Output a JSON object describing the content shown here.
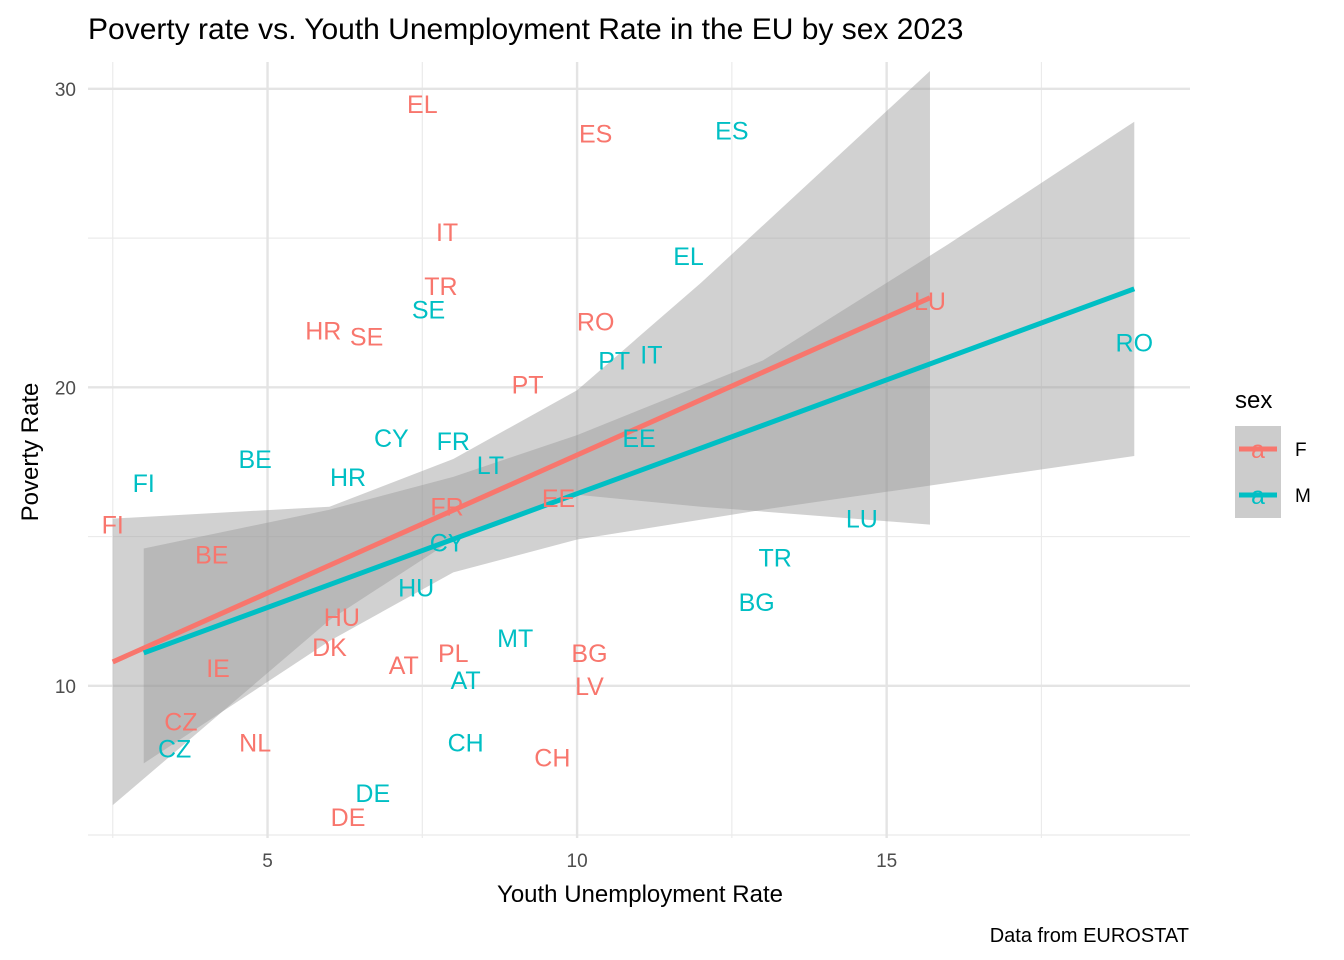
{
  "chart_data": {
    "type": "scatter",
    "title": "Poverty rate vs. Youth Unemployment Rate in the EU by sex 2023",
    "xlabel": "Youth Unemployment Rate",
    "ylabel": "Poverty Rate",
    "caption": "Data from EUROSTAT",
    "xlim": [
      2.1,
      19.9
    ],
    "ylim": [
      4.9,
      30.9
    ],
    "x_ticks": [
      5,
      10,
      15
    ],
    "y_ticks": [
      10,
      20,
      30
    ],
    "grid": true,
    "legend": {
      "title": "sex",
      "placement": "right",
      "glyph": "a",
      "entries": [
        "F",
        "M"
      ]
    },
    "series": [
      {
        "name": "F",
        "color": "#F8766D",
        "points": [
          {
            "label": "EL",
            "x": 7.5,
            "y": 29.5
          },
          {
            "label": "ES",
            "x": 10.3,
            "y": 28.5
          },
          {
            "label": "IT",
            "x": 7.9,
            "y": 25.2
          },
          {
            "label": "TR",
            "x": 7.8,
            "y": 23.4
          },
          {
            "label": "HR",
            "x": 5.9,
            "y": 21.9
          },
          {
            "label": "SE",
            "x": 6.6,
            "y": 21.7
          },
          {
            "label": "RO",
            "x": 10.3,
            "y": 22.2
          },
          {
            "label": "LU",
            "x": 15.7,
            "y": 22.9
          },
          {
            "label": "PT",
            "x": 9.2,
            "y": 20.1
          },
          {
            "label": "FR",
            "x": 7.9,
            "y": 16.0
          },
          {
            "label": "EE",
            "x": 9.7,
            "y": 16.3
          },
          {
            "label": "FI",
            "x": 2.5,
            "y": 15.4
          },
          {
            "label": "BE",
            "x": 4.1,
            "y": 14.4
          },
          {
            "label": "HU",
            "x": 6.2,
            "y": 12.3
          },
          {
            "label": "DK",
            "x": 6.0,
            "y": 11.3
          },
          {
            "label": "IE",
            "x": 4.2,
            "y": 10.6
          },
          {
            "label": "AT",
            "x": 7.2,
            "y": 10.7
          },
          {
            "label": "PL",
            "x": 8.0,
            "y": 11.1
          },
          {
            "label": "BG",
            "x": 10.2,
            "y": 11.1
          },
          {
            "label": "LV",
            "x": 10.2,
            "y": 10.0
          },
          {
            "label": "CZ",
            "x": 3.6,
            "y": 8.8
          },
          {
            "label": "NL",
            "x": 4.8,
            "y": 8.1
          },
          {
            "label": "CH",
            "x": 9.6,
            "y": 7.6
          },
          {
            "label": "DE",
            "x": 6.3,
            "y": 5.6
          }
        ],
        "trend": {
          "x": [
            2.5,
            15.7
          ],
          "fit": [
            10.8,
            23.0
          ],
          "band_x": [
            2.5,
            6.0,
            8.0,
            10.0,
            12.0,
            15.7
          ],
          "band_lower": [
            6.0,
            12.2,
            14.9,
            16.4,
            16.0,
            15.4
          ],
          "band_upper": [
            15.6,
            16.0,
            17.6,
            19.9,
            23.5,
            30.6
          ]
        }
      },
      {
        "name": "M",
        "color": "#00BFC4",
        "points": [
          {
            "label": "ES",
            "x": 12.5,
            "y": 28.6
          },
          {
            "label": "EL",
            "x": 11.8,
            "y": 24.4
          },
          {
            "label": "SE",
            "x": 7.6,
            "y": 22.6
          },
          {
            "label": "RO",
            "x": 19.0,
            "y": 21.5
          },
          {
            "label": "IT",
            "x": 11.2,
            "y": 21.1
          },
          {
            "label": "PT",
            "x": 10.6,
            "y": 20.9
          },
          {
            "label": "EE",
            "x": 11.0,
            "y": 18.3
          },
          {
            "label": "CY",
            "x": 7.0,
            "y": 18.3
          },
          {
            "label": "FR",
            "x": 8.0,
            "y": 18.2
          },
          {
            "label": "LT",
            "x": 8.6,
            "y": 17.4
          },
          {
            "label": "BE",
            "x": 4.8,
            "y": 17.6
          },
          {
            "label": "HR",
            "x": 6.3,
            "y": 17.0
          },
          {
            "label": "FI",
            "x": 3.0,
            "y": 16.8
          },
          {
            "label": "CY",
            "x": 7.9,
            "y": 14.8
          },
          {
            "label": "LU",
            "x": 14.6,
            "y": 15.6
          },
          {
            "label": "TR",
            "x": 13.2,
            "y": 14.3
          },
          {
            "label": "HU",
            "x": 7.4,
            "y": 13.3
          },
          {
            "label": "BG",
            "x": 12.9,
            "y": 12.8
          },
          {
            "label": "MT",
            "x": 9.0,
            "y": 11.6
          },
          {
            "label": "AT",
            "x": 8.2,
            "y": 10.2
          },
          {
            "label": "CH",
            "x": 8.2,
            "y": 8.1
          },
          {
            "label": "CZ",
            "x": 3.5,
            "y": 7.9
          },
          {
            "label": "DE",
            "x": 6.7,
            "y": 6.4
          }
        ],
        "trend": {
          "x": [
            3.0,
            19.0
          ],
          "fit": [
            11.1,
            23.3
          ],
          "band_x": [
            3.0,
            6.0,
            8.0,
            10.0,
            13.0,
            16.0,
            19.0
          ],
          "band_lower": [
            7.4,
            11.5,
            13.8,
            14.9,
            15.9,
            16.8,
            17.7
          ],
          "band_upper": [
            14.6,
            15.9,
            17.0,
            18.4,
            20.9,
            24.8,
            28.9
          ]
        }
      }
    ]
  }
}
